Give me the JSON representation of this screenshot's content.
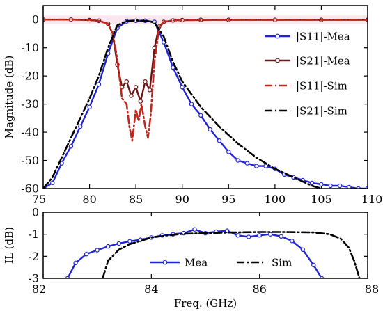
{
  "chart_data": [
    {
      "type": "line",
      "xlim": [
        75,
        110
      ],
      "ylim": [
        -60,
        5
      ],
      "xticks": [
        "75",
        "80",
        "85",
        "90",
        "95",
        "100",
        "105",
        "110"
      ],
      "yticks": [
        "0",
        "-10",
        "-20",
        "-30",
        "-40",
        "-50",
        "-60"
      ],
      "xlabel": "",
      "ylabel": "Magnitude (dB)",
      "legend_position": "right",
      "series": [
        {
          "name": "|S11|-Mea",
          "color": "#1f24d6",
          "dash": "solid",
          "marker": "circle",
          "x": [
            75,
            76,
            77,
            78,
            79,
            80,
            81,
            82,
            83,
            84,
            85,
            86,
            87,
            88,
            89,
            90,
            91,
            92,
            93,
            94,
            95,
            96,
            97,
            98,
            99,
            100,
            101,
            102,
            103,
            104,
            105,
            106,
            107,
            108,
            109,
            110
          ],
          "y": [
            -60,
            -58,
            -51,
            -45,
            -38,
            -31,
            -23,
            -12,
            -3,
            -0.6,
            -0.4,
            -0.4,
            -0.8,
            -8,
            -17,
            -24,
            -30,
            -34,
            -39,
            -43,
            -47,
            -50,
            -51,
            -52,
            -52,
            -53,
            -55,
            -56,
            -57,
            -58,
            -58.5,
            -59,
            -59,
            -59.5,
            -60,
            -60
          ]
        },
        {
          "name": "|S21|-Mea",
          "color": "#6b1414",
          "dash": "solid",
          "marker": "circle",
          "x": [
            75,
            78,
            80,
            81,
            82,
            82.5,
            83,
            83.5,
            84,
            84.5,
            85,
            85.5,
            86,
            86.5,
            87,
            87.5,
            88,
            89,
            90,
            92,
            95,
            100,
            105,
            110
          ],
          "y": [
            0,
            0,
            -0.2,
            -0.4,
            -1.5,
            -5,
            -16,
            -24,
            -22,
            -27,
            -24,
            -29,
            -22,
            -25,
            -10,
            -2.5,
            -0.8,
            -0.3,
            -0.2,
            -0.1,
            -0.1,
            -0.1,
            -0.1,
            -0.1
          ]
        },
        {
          "name": "|S11|-Sim",
          "color": "#c1271f",
          "dash": "dashdot",
          "marker": "none",
          "x": [
            75,
            78,
            80,
            81,
            82,
            82.5,
            83,
            83.5,
            84,
            84.3,
            84.6,
            85,
            85.3,
            85.6,
            86,
            86.3,
            86.6,
            87,
            87.5,
            88,
            89,
            90,
            95,
            100,
            105,
            110
          ],
          "y": [
            0,
            0,
            -0.1,
            -0.4,
            -1.5,
            -5,
            -14,
            -28,
            -30,
            -38,
            -43,
            -32,
            -36,
            -30,
            -38,
            -42,
            -34,
            -15,
            -3,
            -0.8,
            -0.3,
            -0.2,
            -0.1,
            -0.1,
            -0.1,
            -0.1
          ]
        },
        {
          "name": "|S21|-Sim",
          "color": "#000000",
          "dash": "dashdot",
          "marker": "none",
          "x": [
            75,
            76,
            77,
            78,
            79,
            80,
            81,
            82,
            83,
            84,
            85,
            86,
            87,
            88,
            89,
            90,
            92,
            94,
            96,
            98,
            100,
            102,
            104,
            105
          ],
          "y": [
            -60,
            -56,
            -49,
            -42,
            -35,
            -28,
            -20,
            -10,
            -2,
            -0.5,
            -0.3,
            -0.4,
            -1,
            -6,
            -15,
            -22,
            -31,
            -38,
            -44,
            -49,
            -53,
            -56,
            -59,
            -60
          ]
        }
      ]
    },
    {
      "type": "line",
      "xlim": [
        82,
        88
      ],
      "ylim": [
        -3,
        0
      ],
      "xticks": [
        "82",
        "84",
        "86",
        "88"
      ],
      "yticks": [
        "0",
        "-1",
        "-2",
        "-3"
      ],
      "xlabel": "Freq. (GHz)",
      "ylabel": "IL (dB)",
      "legend_position": "bottom",
      "series": [
        {
          "name": "Mea",
          "color": "#1f24d6",
          "dash": "solid",
          "marker": "circle",
          "x": [
            82.45,
            82.6,
            82.8,
            83,
            83.2,
            83.4,
            83.6,
            83.8,
            84,
            84.2,
            84.4,
            84.6,
            84.8,
            85,
            85.2,
            85.4,
            85.6,
            85.8,
            86,
            86.2,
            86.4,
            86.6,
            86.8,
            87,
            87.15
          ],
          "y": [
            -3,
            -2.3,
            -1.9,
            -1.72,
            -1.55,
            -1.42,
            -1.32,
            -1.25,
            -1.15,
            -1.05,
            -1.0,
            -0.95,
            -0.78,
            -0.95,
            -0.88,
            -0.84,
            -1.05,
            -1.12,
            -1.05,
            -1.0,
            -1.1,
            -1.3,
            -1.7,
            -2.4,
            -3
          ]
        },
        {
          "name": "Sim",
          "color": "#000000",
          "dash": "dashdot",
          "marker": "none",
          "x": [
            83.1,
            83.2,
            83.4,
            83.6,
            83.8,
            84,
            84.3,
            84.6,
            85,
            85.5,
            86,
            86.5,
            87,
            87.3,
            87.5,
            87.65,
            87.75,
            87.85
          ],
          "y": [
            -3,
            -2.2,
            -1.7,
            -1.45,
            -1.3,
            -1.15,
            -1.05,
            -0.98,
            -0.95,
            -0.92,
            -0.9,
            -0.9,
            -0.92,
            -1.0,
            -1.2,
            -1.6,
            -2.2,
            -3
          ]
        }
      ]
    }
  ]
}
